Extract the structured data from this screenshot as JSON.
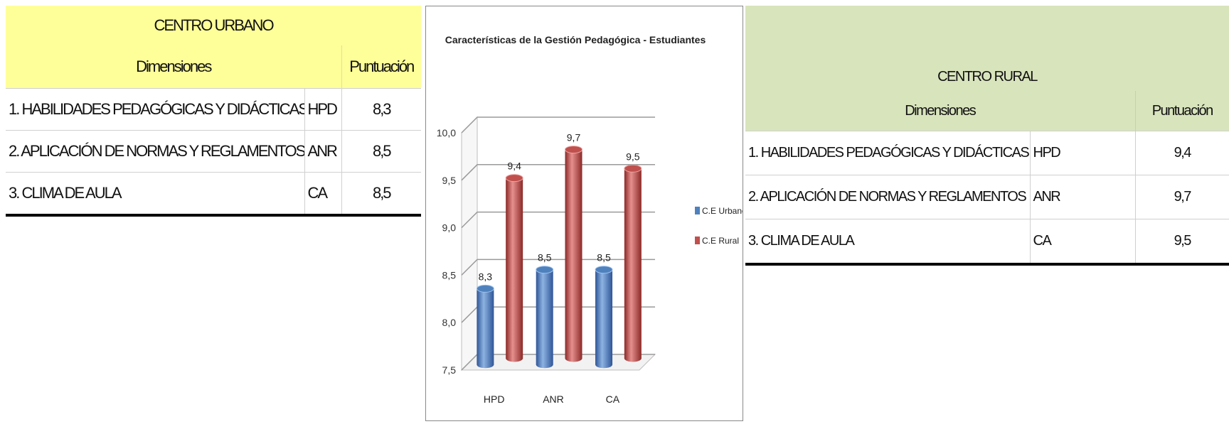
{
  "urban_table": {
    "title": "CENTRO URBANO",
    "header_dim": "Dimensiones",
    "header_score": "Puntuación",
    "rows": [
      {
        "dimension": "1. HABILIDADES PEDAGÓGICAS Y DIDÁCTICAS",
        "code": "HPD",
        "score": "8,3"
      },
      {
        "dimension": "2. APLICACIÓN DE NORMAS Y REGLAMENTOS",
        "code": "ANR",
        "score": "8,5"
      },
      {
        "dimension": "3. CLIMA DE AULA",
        "code": "CA",
        "score": "8,5"
      }
    ]
  },
  "rural_table": {
    "title": "CENTRO RURAL",
    "header_dim": "Dimensiones",
    "header_score": "Puntuación",
    "rows": [
      {
        "dimension": "1. HABILIDADES PEDAGÓGICAS Y DIDÁCTICAS",
        "code": "HPD",
        "score": "9,4"
      },
      {
        "dimension": "2. APLICACIÓN DE NORMAS Y REGLAMENTOS",
        "code": "ANR",
        "score": "9,7"
      },
      {
        "dimension": "3. CLIMA DE AULA",
        "code": "CA",
        "score": "9,5"
      }
    ]
  },
  "chart_data": {
    "type": "bar",
    "title": "Características de la Gestión Pedagógica - Estudiantes",
    "categories": [
      "HPD",
      "ANR",
      "CA"
    ],
    "series": [
      {
        "name": "C.E Urbano",
        "values": [
          8.3,
          8.5,
          8.5
        ],
        "labels": [
          "8,3",
          "8,5",
          "8,5"
        ],
        "color": "#4f81bd"
      },
      {
        "name": "C.E Rural",
        "values": [
          9.4,
          9.7,
          9.5
        ],
        "labels": [
          "9,4",
          "9,7",
          "9,5"
        ],
        "color": "#c0504d"
      }
    ],
    "ylim": [
      7.5,
      10.0
    ],
    "yticks": [
      "7,5",
      "8,0",
      "8,5",
      "9,0",
      "9,5",
      "10,0"
    ],
    "grid": true,
    "legend": "right",
    "style": "3d-cylinder"
  }
}
